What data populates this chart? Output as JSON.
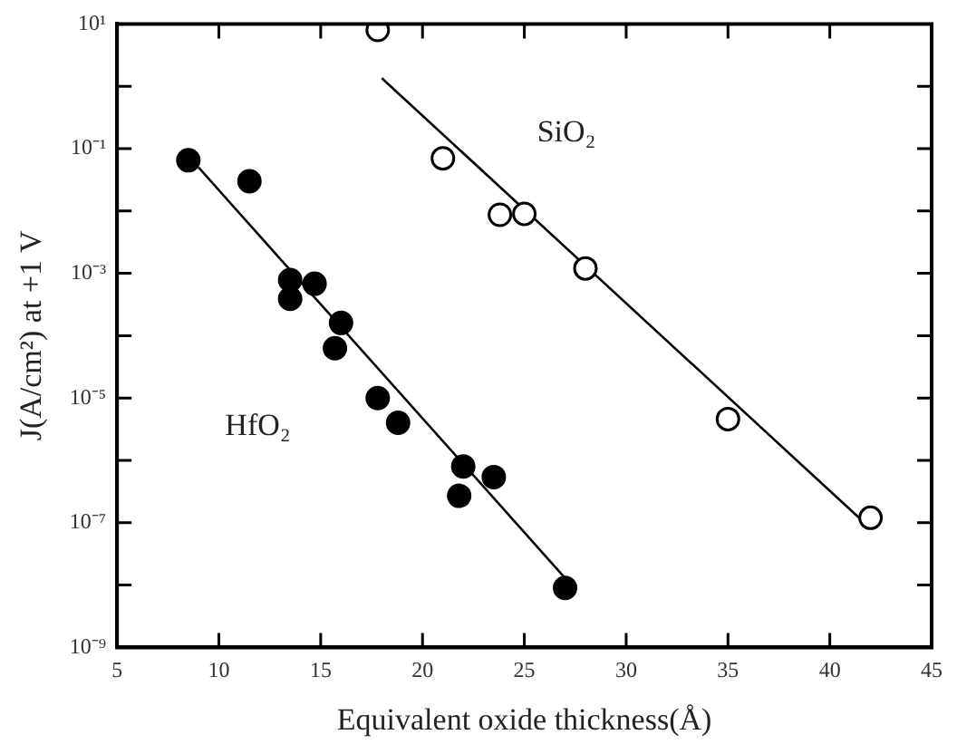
{
  "chart_data": {
    "type": "scatter",
    "xlabel": "Equivalent oxide thickness(Å)",
    "ylabel": "J(A/cm²) at +1 V",
    "log": "y",
    "grid": false,
    "legend": false,
    "xlim": [
      5,
      45
    ],
    "xticks": [
      5,
      10,
      15,
      20,
      25,
      30,
      35,
      40,
      45
    ],
    "ylim": [
      1e-09,
      10
    ],
    "yticks": [
      {
        "value": 10,
        "label": "10¹"
      },
      {
        "value": 1,
        "label": null
      },
      {
        "value": 0.1,
        "label": "10⁻¹"
      },
      {
        "value": 0.01,
        "label": null
      },
      {
        "value": 0.001,
        "label": "10⁻³"
      },
      {
        "value": 0.0001,
        "label": null
      },
      {
        "value": 1e-05,
        "label": "10⁻⁵"
      },
      {
        "value": 1e-06,
        "label": null
      },
      {
        "value": 1e-07,
        "label": "10⁻⁷"
      },
      {
        "value": 1e-08,
        "label": null
      },
      {
        "value": 1e-09,
        "label": "10⁻⁹"
      }
    ],
    "series": [
      {
        "name": "HfO₂",
        "marker": "circle",
        "color": "#000000",
        "x": [
          8.5,
          11.5,
          13.5,
          13.5,
          14.7,
          16,
          15.7,
          17.8,
          18.8,
          22,
          21.8,
          23.5,
          27
        ],
        "values": [
          0.065,
          0.03,
          0.00078,
          0.00039,
          0.00068,
          0.00016,
          6.3e-05,
          1e-05,
          4e-06,
          8e-07,
          2.7e-07,
          5.4e-07,
          9e-09
        ]
      },
      {
        "name": "SiO₂",
        "marker": "circle",
        "color": "#ffffff",
        "x": [
          17.8,
          21,
          23.8,
          25,
          28,
          35,
          42
        ],
        "values": [
          8,
          0.07,
          0.0087,
          0.009,
          0.0012,
          4.6e-06,
          1.2e-07
        ]
      },
      {
        "type": "line",
        "color": "#000000",
        "x": [
          9,
          27
        ],
        "values": [
          0.05,
          1.3e-08
        ]
      },
      {
        "type": "line",
        "color": "#000000",
        "x": [
          18,
          41.7
        ],
        "values": [
          1.35,
          1e-07
        ]
      }
    ]
  }
}
